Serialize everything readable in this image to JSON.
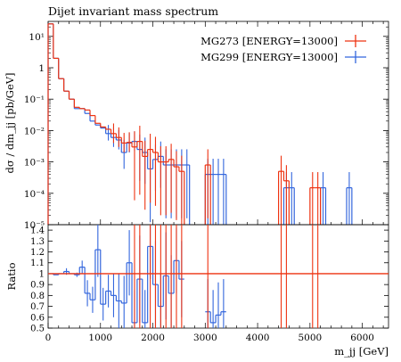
{
  "chart_data": [
    {
      "type": "line",
      "title": "Dijet invariant mass spectrum",
      "ylabel": "dσ / dm_jj [pb/GeV]",
      "xlabel": "",
      "y_scale": "log",
      "ylim": [
        1e-05,
        30
      ],
      "xlim": [
        0,
        6500
      ],
      "y_ticks": [
        {
          "value": 1e-05,
          "label": "10⁻⁵"
        },
        {
          "value": 0.0001,
          "label": "10⁻⁴"
        },
        {
          "value": 0.001,
          "label": "10⁻³"
        },
        {
          "value": 0.01,
          "label": "10⁻²"
        },
        {
          "value": 0.1,
          "label": "10⁻¹"
        },
        {
          "value": 1,
          "label": "1"
        },
        {
          "value": 10,
          "label": "10¹"
        }
      ],
      "legend_position": "top-right",
      "series": [
        {
          "name": "MG273 [ENERGY=13000]",
          "color": "#ee3311",
          "points": [
            {
              "x": 50,
              "y": 25,
              "err": 0
            },
            {
              "x": 150,
              "y": 2.0,
              "err": 0
            },
            {
              "x": 250,
              "y": 0.45,
              "err": 0
            },
            {
              "x": 350,
              "y": 0.18,
              "err": 0
            },
            {
              "x": 450,
              "y": 0.1,
              "err": 0
            },
            {
              "x": 550,
              "y": 0.055,
              "err": 0
            },
            {
              "x": 650,
              "y": 0.05,
              "err": 0
            },
            {
              "x": 750,
              "y": 0.045,
              "err": 0
            },
            {
              "x": 850,
              "y": 0.03,
              "err": 0
            },
            {
              "x": 950,
              "y": 0.017,
              "err": 0
            },
            {
              "x": 1050,
              "y": 0.013,
              "err": 0
            },
            {
              "x": 1150,
              "y": 0.011,
              "err": 0
            },
            {
              "x": 1250,
              "y": 0.008,
              "err": 0.5
            },
            {
              "x": 1350,
              "y": 0.006,
              "err": 0.5
            },
            {
              "x": 1450,
              "y": 0.004,
              "err": 0.5
            },
            {
              "x": 1550,
              "y": 0.0042,
              "err": 0.5
            },
            {
              "x": 1650,
              "y": 0.003,
              "err": 0.98
            },
            {
              "x": 1750,
              "y": 0.0045,
              "err": 0.98
            },
            {
              "x": 1850,
              "y": 0.0015,
              "err": 0.98
            },
            {
              "x": 1950,
              "y": 0.0025,
              "err": 0.98
            },
            {
              "x": 2050,
              "y": 0.002,
              "err": 0.98
            },
            {
              "x": 2150,
              "y": 0.001,
              "err": 0.98
            },
            {
              "x": 2250,
              "y": 0.001,
              "err": 0.98
            },
            {
              "x": 2350,
              "y": 0.0012,
              "err": 0.98
            },
            {
              "x": 2450,
              "y": 0.0007,
              "err": 0.98
            },
            {
              "x": 2550,
              "y": 0.0005,
              "err": 0.98
            },
            {
              "x": 3050,
              "y": 0.0008,
              "err": 0.98
            },
            {
              "x": 4450,
              "y": 0.0005,
              "err": 0.98
            },
            {
              "x": 4550,
              "y": 0.00025,
              "err": 0.98
            },
            {
              "x": 5050,
              "y": 0.00015,
              "err": 0.98
            },
            {
              "x": 5150,
              "y": 0.00015,
              "err": 0.98
            }
          ]
        },
        {
          "name": "MG299 [ENERGY=13000]",
          "color": "#3366dd",
          "points": [
            {
              "x": 50,
              "y": 25,
              "err": 0
            },
            {
              "x": 150,
              "y": 2.0,
              "err": 0
            },
            {
              "x": 250,
              "y": 0.45,
              "err": 0
            },
            {
              "x": 350,
              "y": 0.18,
              "err": 0
            },
            {
              "x": 450,
              "y": 0.1,
              "err": 0
            },
            {
              "x": 550,
              "y": 0.05,
              "err": 0
            },
            {
              "x": 650,
              "y": 0.05,
              "err": 0
            },
            {
              "x": 750,
              "y": 0.035,
              "err": 0
            },
            {
              "x": 850,
              "y": 0.02,
              "err": 0
            },
            {
              "x": 950,
              "y": 0.015,
              "err": 0
            },
            {
              "x": 1050,
              "y": 0.012,
              "err": 0
            },
            {
              "x": 1150,
              "y": 0.008,
              "err": 0.4
            },
            {
              "x": 1250,
              "y": 0.006,
              "err": 0.5
            },
            {
              "x": 1350,
              "y": 0.005,
              "err": 0.5
            },
            {
              "x": 1450,
              "y": 0.002,
              "err": 0.7
            },
            {
              "x": 1550,
              "y": 0.004,
              "err": 0.5
            },
            {
              "x": 1650,
              "y": 0.0045,
              "err": 0.5
            },
            {
              "x": 1750,
              "y": 0.0025,
              "err": 0.9
            },
            {
              "x": 1850,
              "y": 0.002,
              "err": 0.9
            },
            {
              "x": 1950,
              "y": 0.0006,
              "err": 0.98
            },
            {
              "x": 2050,
              "y": 0.0012,
              "err": 0.9
            },
            {
              "x": 2150,
              "y": 0.0015,
              "err": 0.9
            },
            {
              "x": 2250,
              "y": 0.0008,
              "err": 0.98
            },
            {
              "x": 2350,
              "y": 0.0008,
              "err": 0.98
            },
            {
              "x": 2450,
              "y": 0.0008,
              "err": 0.98
            },
            {
              "x": 2550,
              "y": 0.0008,
              "err": 0.98
            },
            {
              "x": 2650,
              "y": 0.0008,
              "err": 0.98
            },
            {
              "x": 3050,
              "y": 0.0004,
              "err": 0.98
            },
            {
              "x": 3150,
              "y": 0.0004,
              "err": 0.98
            },
            {
              "x": 3250,
              "y": 0.0004,
              "err": 0.98
            },
            {
              "x": 3350,
              "y": 0.0004,
              "err": 0.98
            },
            {
              "x": 4550,
              "y": 0.00015,
              "err": 0.98
            },
            {
              "x": 4650,
              "y": 0.00015,
              "err": 0.98
            },
            {
              "x": 5250,
              "y": 0.00015,
              "err": 0.98
            },
            {
              "x": 5750,
              "y": 0.00015,
              "err": 0.98
            }
          ]
        }
      ]
    },
    {
      "type": "line",
      "title": "",
      "ylabel": "Ratio",
      "xlabel": "m_jj [GeV]",
      "ylim": [
        0.5,
        1.45
      ],
      "xlim": [
        0,
        6500
      ],
      "y_ticks": [
        {
          "value": 0.5,
          "label": "0.5"
        },
        {
          "value": 0.6,
          "label": "0.6"
        },
        {
          "value": 0.7,
          "label": "0.7"
        },
        {
          "value": 0.8,
          "label": "0.8"
        },
        {
          "value": 0.9,
          "label": "0.9"
        },
        {
          "value": 1.0,
          "label": "1"
        },
        {
          "value": 1.1,
          "label": "1.1"
        },
        {
          "value": 1.2,
          "label": "1.2"
        },
        {
          "value": 1.3,
          "label": "1.3"
        },
        {
          "value": 1.4,
          "label": "1.4"
        }
      ],
      "x_ticks": [
        {
          "value": 0,
          "label": "0"
        },
        {
          "value": 1000,
          "label": "1000"
        },
        {
          "value": 2000,
          "label": "2000"
        },
        {
          "value": 3000,
          "label": "3000"
        },
        {
          "value": 4000,
          "label": "4000"
        },
        {
          "value": 5000,
          "label": "5000"
        },
        {
          "value": 6000,
          "label": "6000"
        }
      ],
      "series": [
        {
          "name": "MG273 [ENERGY=13000]",
          "color": "#ee3311",
          "values": [
            {
              "x1": 0,
              "x2": 6500,
              "y": 1.0
            }
          ],
          "error_bars": [
            1650,
            1750,
            1950,
            2050,
            2150,
            2250,
            2350,
            2450,
            2550,
            3050,
            4450,
            4550,
            5050,
            5150
          ]
        },
        {
          "name": "MG299 [ENERGY=13000]",
          "color": "#3366dd",
          "points": [
            {
              "x": 50,
              "y": 1.0,
              "err": 0
            },
            {
              "x": 150,
              "y": 0.99,
              "err": 0
            },
            {
              "x": 250,
              "y": 1.0,
              "err": 0
            },
            {
              "x": 350,
              "y": 1.02,
              "err": 0.03
            },
            {
              "x": 450,
              "y": 1.0,
              "err": 0
            },
            {
              "x": 550,
              "y": 0.99,
              "err": 0.02
            },
            {
              "x": 650,
              "y": 1.06,
              "err": 0.06
            },
            {
              "x": 750,
              "y": 0.82,
              "err": 0.12
            },
            {
              "x": 850,
              "y": 0.76,
              "err": 0.12
            },
            {
              "x": 950,
              "y": 1.22,
              "err": 0.25
            },
            {
              "x": 1050,
              "y": 0.72,
              "err": 0.15
            },
            {
              "x": 1150,
              "y": 0.84,
              "err": 0.15
            },
            {
              "x": 1250,
              "y": 0.8,
              "err": 0.2
            },
            {
              "x": 1350,
              "y": 0.75,
              "err": 0.25
            },
            {
              "x": 1450,
              "y": 0.73,
              "err": 0.25
            },
            {
              "x": 1550,
              "y": 1.1,
              "err": 0.3
            },
            {
              "x": 1650,
              "y": 0.55,
              "err": 0.3
            },
            {
              "x": 1750,
              "y": 0.95,
              "err": 0.4
            },
            {
              "x": 1850,
              "y": 0.55,
              "err": 0.3
            },
            {
              "x": 1950,
              "y": 1.25,
              "err": 0.3
            },
            {
              "x": 2050,
              "y": 0.9,
              "err": 0.4
            },
            {
              "x": 2150,
              "y": 0.7,
              "err": 0.3
            },
            {
              "x": 2250,
              "y": 0.98,
              "err": 0.4
            },
            {
              "x": 2350,
              "y": 0.82,
              "err": 0.35
            },
            {
              "x": 2450,
              "y": 1.12,
              "err": 0.3
            },
            {
              "x": 2550,
              "y": 0.95,
              "err": 0.35
            },
            {
              "x": 3050,
              "y": 0.65,
              "err": 0.3
            },
            {
              "x": 3150,
              "y": 0.55,
              "err": 0.3
            },
            {
              "x": 3250,
              "y": 0.62,
              "err": 0.3
            },
            {
              "x": 3350,
              "y": 0.65,
              "err": 0.3
            }
          ]
        }
      ]
    }
  ]
}
